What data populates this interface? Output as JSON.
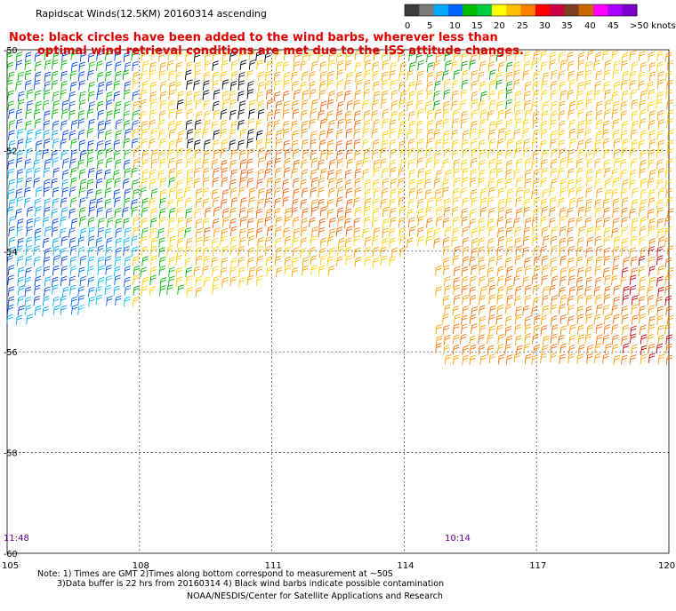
{
  "header": {
    "title": "Rapidscat Winds(12.5KM) 20160314 ascending"
  },
  "legend": {
    "labels": [
      "0",
      "5",
      "10",
      "15",
      "20",
      "25",
      "30",
      "35",
      "40",
      "45",
      ">50 knots"
    ],
    "colors": [
      "#3c3c3c",
      "#7a7a7a",
      "#00aaff",
      "#0066ff",
      "#00bb00",
      "#00cc44",
      "#ffff00",
      "#ffc000",
      "#ff8000",
      "#ff0000",
      "#cc0044",
      "#804020",
      "#cc6600",
      "#ff00ff",
      "#aa00ff",
      "#7a00cc"
    ]
  },
  "note": {
    "line1": "Note: black circles have been added to the wind barbs, wherever less than",
    "line2": "optimal wind retrieval conditions are met due to the ISS attitude changes."
  },
  "map": {
    "lat_labels": [
      "-50",
      "-52",
      "-54",
      "-56",
      "-58",
      "-60"
    ],
    "lon_labels": [
      "105",
      "108",
      "111",
      "114",
      "117",
      "120"
    ],
    "time_labels": [
      {
        "text": "11:48",
        "lon": 105
      },
      {
        "text": "10:14",
        "lon": 115
      }
    ]
  },
  "footer": {
    "line1": "Note: 1) Times are GMT 2)Times along bottom correspond to measurement at ~50S",
    "line2": "3)Data buffer is 22 hrs from 20160314 4) Black wind barbs indicate possible contamination",
    "line3": "NOAA/NESDIS/Center for Satellite Applications and Research"
  }
}
